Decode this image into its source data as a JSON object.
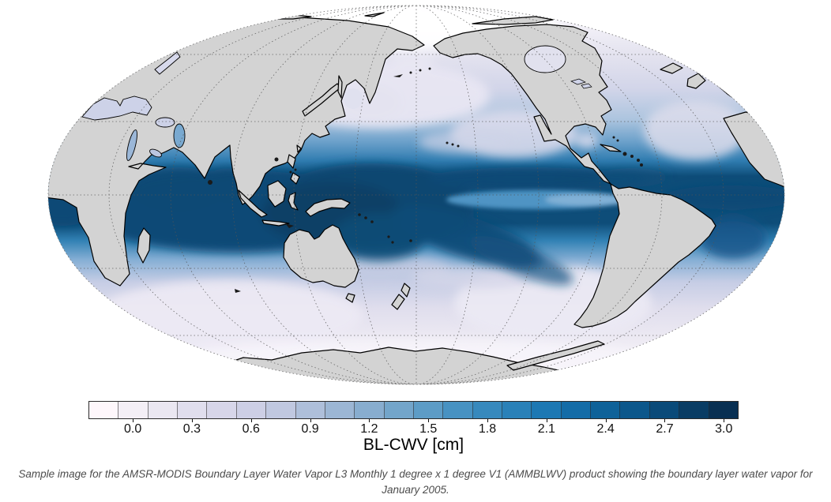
{
  "map": {
    "projection": "Mollweide global map, Pacific-centered",
    "land_color": "#d3d3d3",
    "coast_color": "#000000",
    "band_color": "#0e4d79",
    "ocean_low_color": "#fdf6fa",
    "no_data_color": "#ffffff"
  },
  "colorbar": {
    "title": "BL-CWV [cm]",
    "ticks": [
      "0.0",
      "0.3",
      "0.6",
      "0.9",
      "1.2",
      "1.5",
      "1.8",
      "2.1",
      "2.4",
      "2.7",
      "3.0"
    ],
    "cells": [
      "#fef7fb",
      "#f4eff6",
      "#eae7f1",
      "#e0deed",
      "#d7d6e9",
      "#cdcfe5",
      "#c0c8e0",
      "#aebfda",
      "#9cb6d4",
      "#88adcf",
      "#73a5ca",
      "#5d9cc6",
      "#4892c2",
      "#3789bd",
      "#2a81b8",
      "#1d78b3",
      "#146ca7",
      "#0f6299",
      "#0c578b",
      "#0a4a79",
      "#093c64",
      "#082f52"
    ]
  },
  "caption": {
    "line1": "Sample image for the AMSR-MODIS Boundary Layer Water Vapor L3 Monthly 1 degree x 1 degree V1 (AMMBLWV) product showing the boundary layer water vapor for",
    "line2": "January 2005."
  },
  "chart_data": {
    "type": "heatmap",
    "title": "BL-CWV [cm]",
    "variable": "Boundary layer column water vapor",
    "units": "cm",
    "period_shown": "January 2005",
    "projection": "Mollweide global map, Pacific-centered",
    "colorbar": {
      "min": 0.0,
      "max": 3.0,
      "tick_step": 0.3,
      "ticks": [
        0.0,
        0.3,
        0.6,
        0.9,
        1.2,
        1.5,
        1.8,
        2.1,
        2.4,
        2.7,
        3.0
      ],
      "cell_value_step": 0.15,
      "colors": [
        "#fef7fb",
        "#f4eff6",
        "#eae7f1",
        "#e0deed",
        "#d7d6e9",
        "#cdcfe5",
        "#c0c8e0",
        "#aebfda",
        "#9cb6d4",
        "#88adcf",
        "#73a5ca",
        "#5d9cc6",
        "#4892c2",
        "#3789bd",
        "#2a81b8",
        "#1d78b3",
        "#146ca7",
        "#0f6299",
        "#0c578b",
        "#0a4a79",
        "#093c64",
        "#082f52"
      ]
    },
    "pattern": [
      {
        "region": "Tropical Indian Ocean and West Pacific warm pool",
        "value_cm": "2.7 to >3.0"
      },
      {
        "region": "Eastern Pacific ITCZ band near 5-10N",
        "value_cm": "2.7-3.0"
      },
      {
        "region": "South Pacific Convergence Zone (diagonal band SE of New Guinea)",
        "value_cm": "2.4-3.0"
      },
      {
        "region": "Tropical Atlantic ITCZ",
        "value_cm": "2.4-3.0"
      },
      {
        "region": "Equatorial east Pacific cold tongue",
        "value_cm": "1.8-2.4"
      },
      {
        "region": "Subtropical oceans near 25-35 deg latitude",
        "value_cm": "0.6-1.5"
      },
      {
        "region": "Mid- and high-latitude oceans poleward of ~45 deg",
        "value_cm": "0.0-0.6"
      },
      {
        "region": "Land masses",
        "value_cm": "no data (gray)"
      },
      {
        "region": "Polar oceans / high Arctic",
        "value_cm": "no data (white)"
      }
    ]
  }
}
